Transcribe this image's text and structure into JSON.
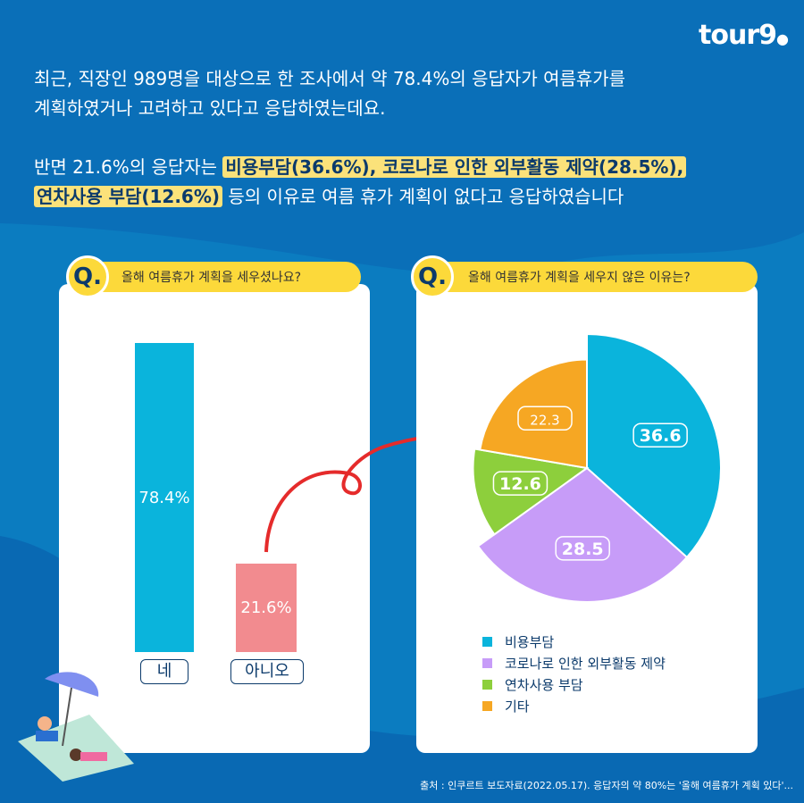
{
  "logo": "tourgo",
  "intro": {
    "line1": "최근, 직장인 989명을 대상으로 한 조사에서 약 78.4%의 응답자가 여름휴가를",
    "line2": "계획하였거나 고려하고 있다고 응답하였는데요.",
    "p2_start": "반면 21.6%의 응답자는 ",
    "hl1": "비용부담(36.6%), 코로나로 인한 외부활동 제약(28.5%),",
    "hl2": "연차사용 부담(12.6%)",
    "p2_end": " 등의 이유로 여름 휴가 계획이 없다고 응답하였습니다"
  },
  "left": {
    "q": "Q.",
    "question": "올해 여름휴가 계획을 세우셨나요?",
    "bars": [
      {
        "label": "네",
        "value": 78.4,
        "text": "78.4%",
        "color": "#0ab4dc"
      },
      {
        "label": "아니오",
        "value": 21.6,
        "text": "21.6%",
        "color": "#f28b8f"
      }
    ]
  },
  "right": {
    "q": "Q.",
    "question": "올해 여름휴가 계획을 세우지 않은 이유는?"
  },
  "chart_data": {
    "type": "pie",
    "slices": [
      {
        "name": "비용부담",
        "value": 36.6,
        "label": "36.6",
        "color": "#0ab4dc"
      },
      {
        "name": "코로나로 인한 외부활동 제약",
        "value": 28.5,
        "label": "28.5",
        "color": "#c79cf8"
      },
      {
        "name": "연차사용 부담",
        "value": 12.6,
        "label": "12.6",
        "color": "#8dcf3c"
      },
      {
        "name": "기타",
        "value": 22.3,
        "label": "22.3",
        "color": "#f6a723"
      }
    ],
    "legend": "bottom"
  },
  "source": "출처 : 인쿠르트 보도자료(2022.05.17). 응답자의 약 80%는 '올해 여름휴가 계획 있다'..."
}
